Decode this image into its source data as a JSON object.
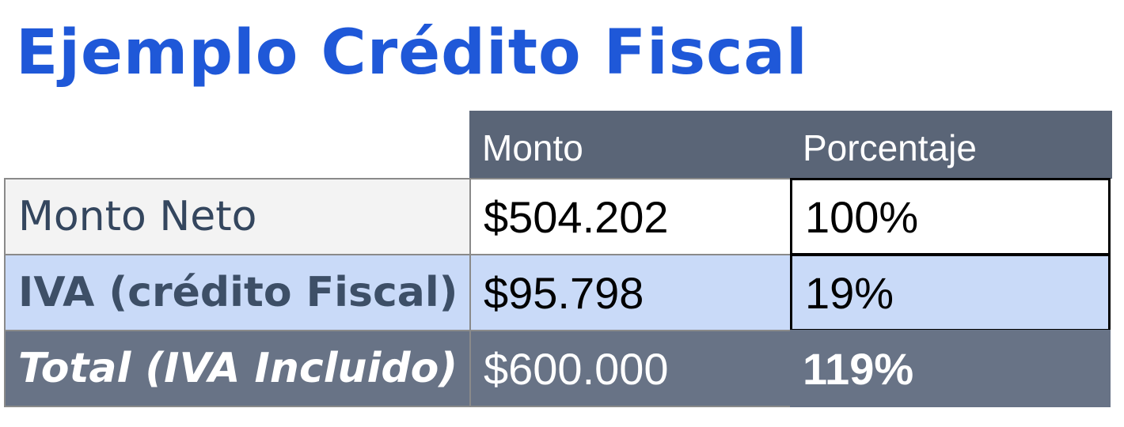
{
  "header": {
    "title": "Ejemplo Crédito Fiscal"
  },
  "table": {
    "columns": [
      "Monto",
      "Porcentaje"
    ],
    "rows": [
      [
        "Monto Neto",
        "$504.202",
        "100%"
      ],
      [
        "IVA (crédito Fiscal)",
        "$95.798",
        "19%"
      ],
      [
        "Total (IVA Incluido)",
        "$600.000",
        "119%"
      ]
    ]
  }
}
